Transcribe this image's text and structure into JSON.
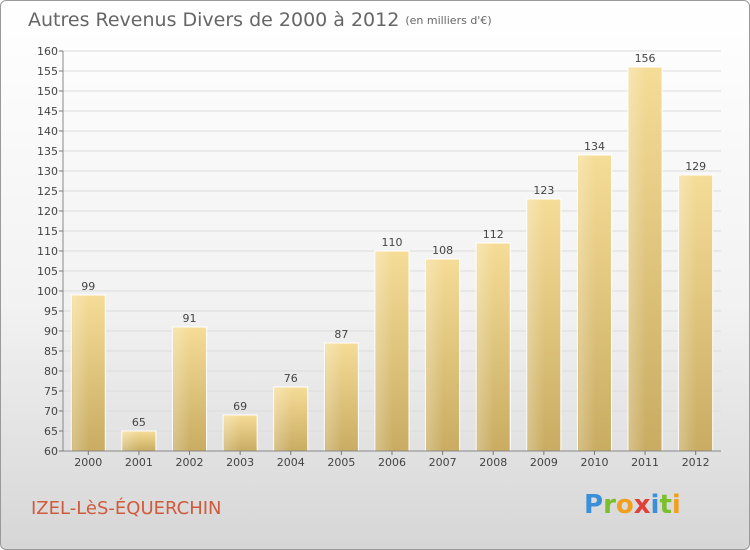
{
  "header": {
    "title": "Autres Revenus Divers de 2000 à 2012",
    "subtitle": "(en milliers d'€)"
  },
  "footer": {
    "city": "IZEL-LèS-ÉQUERCHIN",
    "logo": [
      "P",
      "r",
      "o",
      "x",
      "i",
      "t",
      "i"
    ],
    "logo_colors": [
      "#3b8fd9",
      "#7bbf2a",
      "#f0a020",
      "#e0403a",
      "#3b8fd9",
      "#7bbf2a",
      "#f0a020"
    ]
  },
  "chart_data": {
    "type": "bar",
    "title": "Autres Revenus Divers de 2000 à 2012",
    "subtitle": "(en milliers d'€)",
    "categories": [
      "2000",
      "2001",
      "2002",
      "2003",
      "2004",
      "2005",
      "2006",
      "2007",
      "2008",
      "2009",
      "2010",
      "2011",
      "2012"
    ],
    "values": [
      99,
      65,
      91,
      69,
      76,
      87,
      110,
      108,
      112,
      123,
      134,
      156,
      129
    ],
    "ylim": [
      60,
      160
    ],
    "yticks": [
      60,
      65,
      70,
      75,
      80,
      85,
      90,
      95,
      100,
      105,
      110,
      115,
      120,
      125,
      130,
      135,
      140,
      145,
      150,
      155,
      160
    ],
    "grid": true,
    "bar_color": "#e8cc85"
  }
}
